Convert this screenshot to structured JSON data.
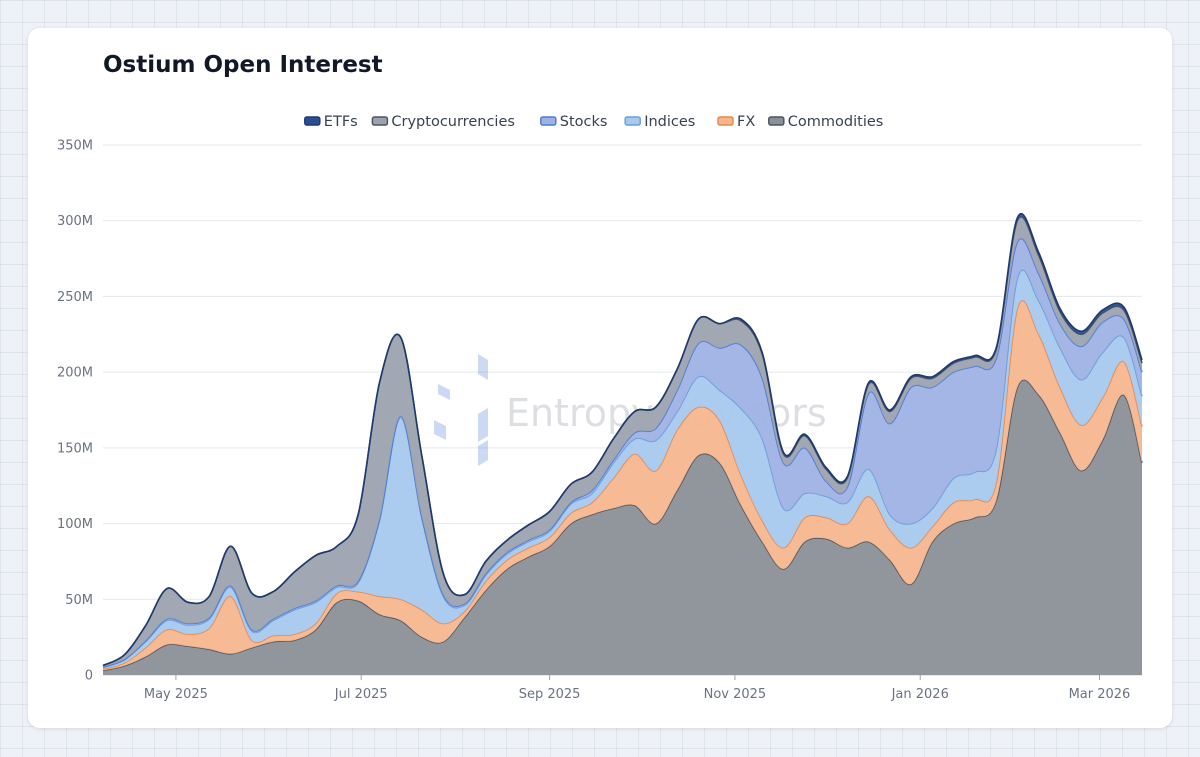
{
  "card": {
    "title": "Ostium Open Interest"
  },
  "watermark": {
    "text": "Entropy Advisors",
    "color": "#4b7bd8"
  },
  "chart_data": {
    "type": "area",
    "stacked": true,
    "title": "Ostium Open Interest",
    "xlabel": "",
    "ylabel": "",
    "x_start": "2025-04-07",
    "x_end": "2026-03-15",
    "ylim": [
      0,
      350000000
    ],
    "y_ticks": [
      {
        "value": 0,
        "label": "0"
      },
      {
        "value": 50000000,
        "label": "50M"
      },
      {
        "value": 100000000,
        "label": "100M"
      },
      {
        "value": 150000000,
        "label": "150M"
      },
      {
        "value": 200000000,
        "label": "200M"
      },
      {
        "value": 250000000,
        "label": "250M"
      },
      {
        "value": 300000000,
        "label": "300M"
      },
      {
        "value": 350000000,
        "label": "350M"
      }
    ],
    "x_ticks": [
      {
        "date": "2025-05-01",
        "label": "May 2025"
      },
      {
        "date": "2025-07-01",
        "label": "Jul 2025"
      },
      {
        "date": "2025-09-01",
        "label": "Sep 2025"
      },
      {
        "date": "2025-11-01",
        "label": "Nov 2025"
      },
      {
        "date": "2026-01-01",
        "label": "Jan 2026"
      },
      {
        "date": "2026-03-01",
        "label": "Mar 2026"
      }
    ],
    "grid": true,
    "legend": "top",
    "units": "USD (M)",
    "dates": [
      "2025-04-07",
      "2025-04-14",
      "2025-04-21",
      "2025-04-28",
      "2025-05-05",
      "2025-05-12",
      "2025-05-19",
      "2025-05-26",
      "2025-06-02",
      "2025-06-09",
      "2025-06-16",
      "2025-06-23",
      "2025-06-30",
      "2025-07-07",
      "2025-07-14",
      "2025-07-21",
      "2025-07-28",
      "2025-08-04",
      "2025-08-11",
      "2025-08-18",
      "2025-08-25",
      "2025-09-01",
      "2025-09-08",
      "2025-09-15",
      "2025-09-22",
      "2025-09-29",
      "2025-10-06",
      "2025-10-13",
      "2025-10-20",
      "2025-10-27",
      "2025-11-03",
      "2025-11-10",
      "2025-11-17",
      "2025-11-24",
      "2025-12-01",
      "2025-12-08",
      "2025-12-15",
      "2025-12-22",
      "2025-12-29",
      "2026-01-05",
      "2026-01-12",
      "2026-01-19",
      "2026-01-26",
      "2026-02-02",
      "2026-02-09",
      "2026-02-16",
      "2026-02-23",
      "2026-03-02",
      "2026-03-09",
      "2026-03-15"
    ],
    "series": [
      {
        "name": "Commodities",
        "color": "#4b5563",
        "fill": "#8b9098",
        "values": [
          3,
          6,
          12,
          20,
          19,
          17,
          14,
          18,
          22,
          23,
          30,
          48,
          49,
          40,
          36,
          25,
          22,
          38,
          56,
          70,
          78,
          85,
          100,
          106,
          110,
          112,
          100,
          122,
          145,
          140,
          112,
          88,
          70,
          88,
          90,
          84,
          88,
          76,
          60,
          88,
          100,
          104,
          115,
          190,
          185,
          160,
          135,
          155,
          185,
          140
        ]
      },
      {
        "name": "FX",
        "color": "#e8884a",
        "fill": "#f5b68e",
        "values": [
          1,
          2,
          6,
          10,
          8,
          14,
          38,
          5,
          4,
          4,
          4,
          6,
          6,
          12,
          14,
          18,
          12,
          4,
          6,
          6,
          6,
          6,
          7,
          8,
          20,
          34,
          35,
          40,
          32,
          28,
          20,
          14,
          14,
          16,
          14,
          16,
          30,
          20,
          24,
          10,
          14,
          12,
          12,
          52,
          40,
          30,
          30,
          28,
          22,
          24
        ]
      },
      {
        "name": "Indices",
        "color": "#6b9fd8",
        "fill": "#a8c9ee",
        "values": [
          1,
          2,
          4,
          6,
          6,
          6,
          6,
          6,
          10,
          16,
          14,
          4,
          6,
          50,
          120,
          60,
          18,
          4,
          4,
          4,
          4,
          4,
          6,
          6,
          10,
          10,
          20,
          12,
          20,
          20,
          44,
          54,
          26,
          16,
          14,
          14,
          18,
          10,
          16,
          12,
          16,
          18,
          22,
          20,
          22,
          26,
          30,
          30,
          16,
          20
        ]
      },
      {
        "name": "Stocks",
        "color": "#4b7bd8",
        "fill": "#9fb2e4",
        "values": [
          0.3,
          0.3,
          0.5,
          1,
          1,
          1,
          1,
          1,
          1,
          1,
          1,
          1,
          1,
          1,
          1,
          1,
          1,
          1,
          1,
          1,
          1,
          1,
          1,
          2,
          2,
          4,
          8,
          14,
          22,
          28,
          42,
          40,
          30,
          30,
          10,
          10,
          50,
          60,
          90,
          80,
          70,
          70,
          60,
          24,
          18,
          16,
          22,
          20,
          12,
          16
        ]
      },
      {
        "name": "Cryptocurrencies",
        "color": "#4b5563",
        "fill": "#9ca3af",
        "values": [
          1,
          3,
          10,
          20,
          14,
          14,
          26,
          24,
          18,
          24,
          30,
          26,
          44,
          90,
          52,
          40,
          14,
          6,
          8,
          8,
          10,
          12,
          12,
          12,
          14,
          14,
          14,
          14,
          16,
          16,
          16,
          16,
          6,
          8,
          8,
          6,
          6,
          8,
          6,
          6,
          6,
          6,
          6,
          14,
          12,
          8,
          8,
          6,
          6,
          6
        ]
      },
      {
        "name": "ETFs",
        "color": "#1f3a6e",
        "fill": "#2b4f8e",
        "values": [
          0,
          0,
          0,
          0,
          0,
          0,
          0,
          0,
          0,
          0,
          0,
          0,
          0,
          0,
          0,
          0,
          0,
          0,
          0,
          0,
          0,
          0,
          0,
          0,
          0,
          0,
          0,
          0,
          0,
          0,
          1,
          1,
          1,
          1,
          1,
          1,
          1,
          1,
          1,
          1,
          1,
          1,
          1,
          2,
          2,
          2,
          2,
          2,
          2,
          2
        ]
      }
    ],
    "legend_order": [
      "ETFs",
      "Cryptocurrencies",
      "Stocks",
      "Indices",
      "FX",
      "Commodities"
    ]
  }
}
